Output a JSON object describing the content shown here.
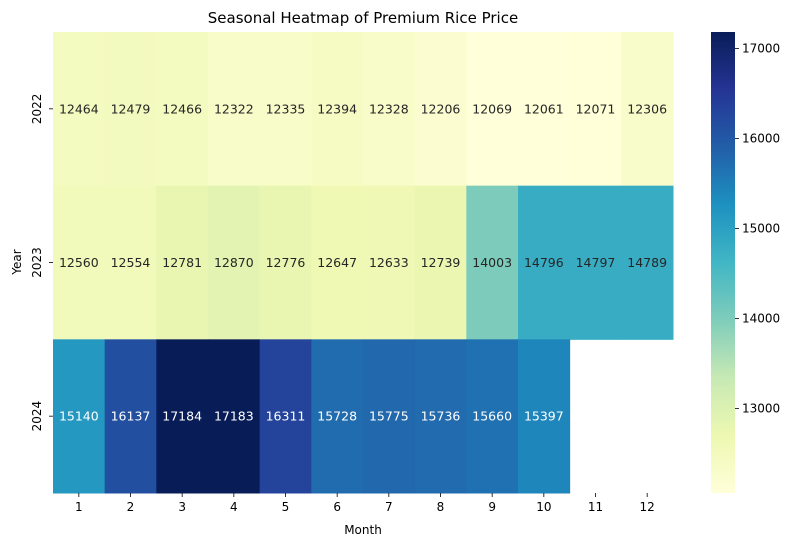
{
  "chart_data": {
    "type": "heatmap",
    "title": "Seasonal Heatmap of Premium Rice Price",
    "xlabel": "Month",
    "ylabel": "Year",
    "x_categories": [
      "1",
      "2",
      "3",
      "4",
      "5",
      "6",
      "7",
      "8",
      "9",
      "10",
      "11",
      "12"
    ],
    "y_categories": [
      "2022",
      "2023",
      "2024"
    ],
    "values": [
      [
        12464,
        12479,
        12466,
        12322,
        12335,
        12394,
        12328,
        12206,
        12069,
        12061,
        12071,
        12306
      ],
      [
        12560,
        12554,
        12781,
        12870,
        12776,
        12647,
        12633,
        12739,
        14003,
        14796,
        14797,
        14789
      ],
      [
        15140,
        16137,
        17184,
        17183,
        16311,
        15728,
        15775,
        15736,
        15660,
        15397,
        null,
        null
      ]
    ],
    "colormap": "YlGnBu",
    "colorbar": {
      "vmin": 12061,
      "vmax": 17184,
      "ticks": [
        13000,
        14000,
        15000,
        16000,
        17000
      ]
    }
  }
}
